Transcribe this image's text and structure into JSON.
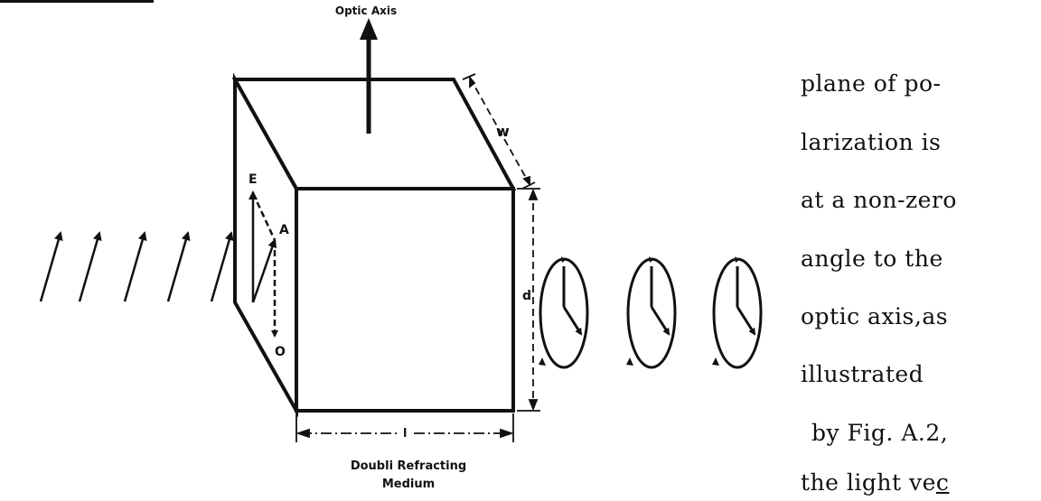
{
  "figure": {
    "optic_axis_label": "Optic Axis",
    "label_w": "w",
    "label_e": "E",
    "label_a": "A",
    "label_o": "O",
    "label_d": "d",
    "label_l": "l",
    "caption_line1": "Doubli Refracting",
    "caption_line2": "Medium"
  },
  "text": {
    "line1": "plane of po-",
    "line2": "larization is",
    "line3": "at a non-zero",
    "line4": "angle to the",
    "line5": "optic axis,as",
    "line6": "illustrated",
    "line7": "by Fig. A.2,",
    "line8_prefix": "the light ve",
    "line8_underlined": "c"
  }
}
